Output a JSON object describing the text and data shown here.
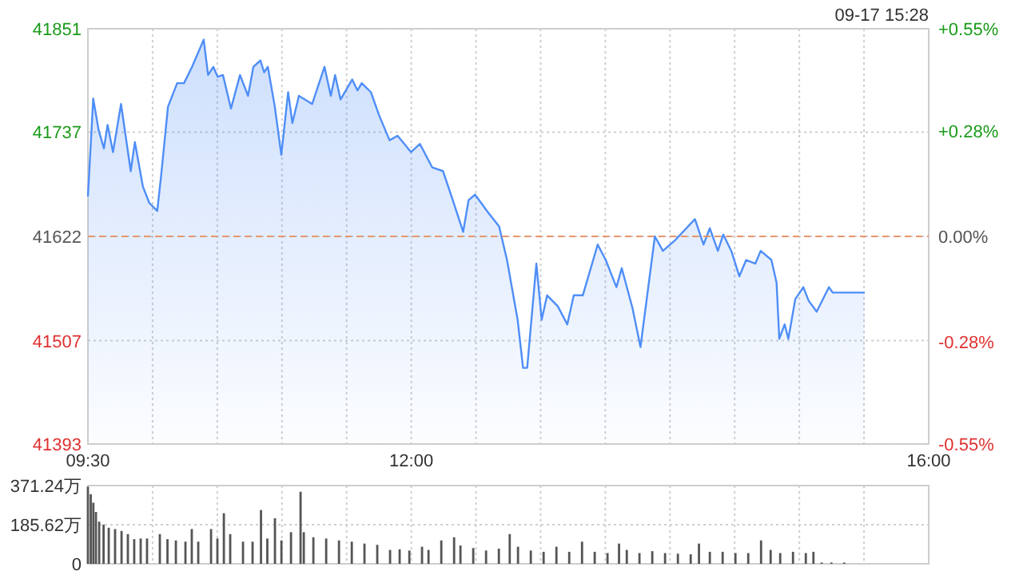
{
  "chart_data": [
    {
      "type": "area",
      "color": "#4f8ef7",
      "annotations": [
        "09-17 15:28"
      ],
      "grid": true,
      "xlim": [
        9.5,
        16
      ],
      "xticks": [
        {
          "value": 9.5,
          "label": "09:30"
        },
        {
          "value": 10,
          "label": null
        },
        {
          "value": 10.5,
          "label": null
        },
        {
          "value": 11,
          "label": null
        },
        {
          "value": 11.5,
          "label": null
        },
        {
          "value": 12,
          "label": "12:00"
        },
        {
          "value": 12.5,
          "label": null
        },
        {
          "value": 13,
          "label": null
        },
        {
          "value": 13.5,
          "label": null
        },
        {
          "value": 14,
          "label": null
        },
        {
          "value": 14.5,
          "label": null
        },
        {
          "value": 15,
          "label": null
        },
        {
          "value": 15.5,
          "label": null
        },
        {
          "value": 16,
          "label": "16:00"
        }
      ],
      "ylim": [
        41393,
        41851
      ],
      "yticks": [
        41393,
        41507,
        41622,
        41737,
        41851
      ],
      "y2lim": [
        -0.55,
        0.55
      ],
      "y2ticks": [
        {
          "value": -0.55,
          "label": "-0.55%"
        },
        {
          "value": -0.28,
          "label": "-0.28%"
        },
        {
          "value": 0,
          "label": "0.00%"
        },
        {
          "value": 0.28,
          "label": "+0.28%"
        },
        {
          "value": 0.55,
          "label": "+0.55%"
        }
      ],
      "ref_lines": [
        {
          "axis": "y",
          "value": 41622,
          "color": "#e8956a",
          "line_style": "dashed"
        }
      ],
      "x": [
        9.5,
        9.541,
        9.583,
        9.624,
        9.652,
        9.694,
        9.756,
        9.831,
        9.863,
        9.925,
        9.974,
        10.036,
        10.066,
        10.119,
        10.19,
        10.243,
        10.305,
        10.395,
        10.429,
        10.47,
        10.503,
        10.544,
        10.606,
        10.676,
        10.738,
        10.779,
        10.834,
        10.862,
        10.891,
        10.945,
        10.995,
        11.048,
        11.081,
        11.131,
        11.234,
        11.329,
        11.378,
        11.411,
        11.453,
        11.543,
        11.584,
        11.617,
        11.688,
        11.75,
        11.832,
        11.894,
        11.998,
        12.067,
        12.162,
        12.245,
        12.307,
        12.401,
        12.443,
        12.493,
        12.596,
        12.679,
        12.74,
        12.822,
        12.864,
        12.896,
        12.967,
        13.008,
        13.05,
        13.132,
        13.206,
        13.256,
        13.326,
        13.441,
        13.503,
        13.586,
        13.627,
        13.71,
        13.772,
        13.883,
        13.945,
        14.041,
        14.193,
        14.259,
        14.308,
        14.37,
        14.412,
        14.474,
        14.536,
        14.589,
        14.66,
        14.701,
        14.784,
        14.824,
        14.845,
        14.886,
        14.915,
        14.969,
        15.031,
        15.072,
        15.134,
        15.229,
        15.258,
        15.505
      ],
      "values": [
        41666,
        41774,
        41739,
        41719,
        41745,
        41715,
        41768,
        41694,
        41726,
        41677,
        41659,
        41650,
        41689,
        41765,
        41791,
        41791,
        41809,
        41839,
        41800,
        41809,
        41798,
        41800,
        41763,
        41800,
        41777,
        41809,
        41816,
        41803,
        41809,
        41765,
        41712,
        41781,
        41747,
        41777,
        41768,
        41809,
        41777,
        41800,
        41773,
        41795,
        41783,
        41791,
        41781,
        41756,
        41728,
        41733,
        41715,
        41724,
        41698,
        41694,
        41668,
        41627,
        41662,
        41668,
        41648,
        41633,
        41596,
        41530,
        41477,
        41477,
        41592,
        41530,
        41557,
        41545,
        41525,
        41557,
        41557,
        41613,
        41596,
        41566,
        41587,
        41543,
        41500,
        41622,
        41606,
        41618,
        41641,
        41613,
        41631,
        41606,
        41624,
        41606,
        41578,
        41596,
        41592,
        41606,
        41596,
        41571,
        41509,
        41525,
        41509,
        41553,
        41566,
        41551,
        41539,
        41566,
        41560,
        41560
      ]
    },
    {
      "type": "bar",
      "color": "#555555",
      "grid": true,
      "tick_labels": "y",
      "xlim": [
        9.5,
        16
      ],
      "xticks": [
        {
          "value": 9.5,
          "label": null
        },
        {
          "value": 10,
          "label": null
        },
        {
          "value": 10.5,
          "label": null
        },
        {
          "value": 11,
          "label": null
        },
        {
          "value": 11.5,
          "label": null
        },
        {
          "value": 12,
          "label": null
        },
        {
          "value": 12.5,
          "label": null
        },
        {
          "value": 13,
          "label": null
        },
        {
          "value": 13.5,
          "label": null
        },
        {
          "value": 14,
          "label": null
        },
        {
          "value": 14.5,
          "label": null
        },
        {
          "value": 15,
          "label": null
        },
        {
          "value": 15.5,
          "label": null
        },
        {
          "value": 16,
          "label": null
        }
      ],
      "ylim": [
        0,
        371.24
      ],
      "yticks": [
        0,
        {
          "value": 185.62,
          "label": "185.62万"
        },
        {
          "value": 371.24,
          "label": "371.24万"
        }
      ],
      "x": [
        9.5,
        9.522,
        9.542,
        9.562,
        9.587,
        9.621,
        9.661,
        9.71,
        9.76,
        9.809,
        9.858,
        9.908,
        9.957,
        10.056,
        10.115,
        10.18,
        10.254,
        10.303,
        10.353,
        10.452,
        10.501,
        10.551,
        10.6,
        10.699,
        10.773,
        10.838,
        10.887,
        10.946,
        10.996,
        11.07,
        11.144,
        11.169,
        11.243,
        11.342,
        11.441,
        11.54,
        11.638,
        11.737,
        11.836,
        11.91,
        11.985,
        12.083,
        12.133,
        12.232,
        12.331,
        12.38,
        12.479,
        12.578,
        12.677,
        12.761,
        12.825,
        12.924,
        13.023,
        13.122,
        13.221,
        13.32,
        13.418,
        13.517,
        13.606,
        13.666,
        13.764,
        13.863,
        13.962,
        14.061,
        14.16,
        14.224,
        14.308,
        14.407,
        14.506,
        14.605,
        14.704,
        14.778,
        14.852,
        14.951,
        15.05,
        15.109,
        15.173,
        15.248,
        15.347
      ],
      "values": [
        366,
        330,
        290,
        246,
        200,
        186,
        171,
        165,
        156,
        141,
        117,
        120,
        120,
        141,
        117,
        111,
        105,
        165,
        105,
        165,
        120,
        240,
        141,
        105,
        105,
        255,
        120,
        216,
        111,
        150,
        342,
        150,
        126,
        120,
        111,
        105,
        96,
        90,
        66,
        69,
        63,
        81,
        66,
        111,
        126,
        87,
        75,
        63,
        72,
        141,
        81,
        63,
        57,
        81,
        57,
        105,
        57,
        51,
        96,
        66,
        51,
        60,
        51,
        48,
        45,
        96,
        57,
        57,
        51,
        51,
        111,
        66,
        51,
        57,
        51,
        57,
        6,
        6,
        6
      ]
    }
  ]
}
